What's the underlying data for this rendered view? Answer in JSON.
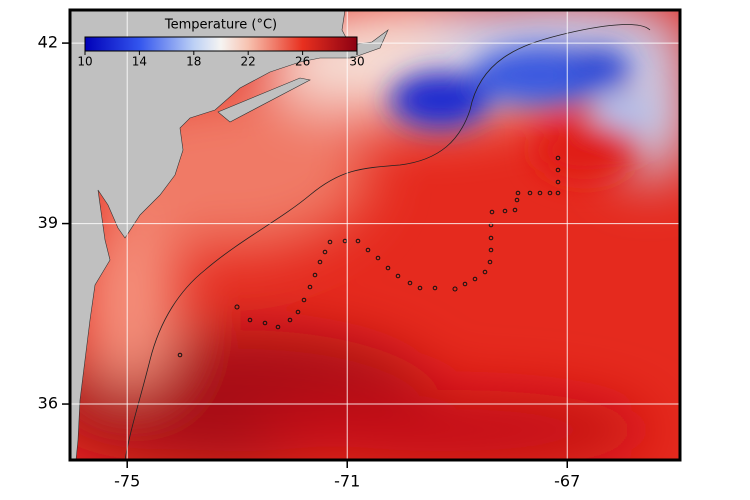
{
  "chart_data": {
    "type": "map",
    "xlim": [
      -76.04,
      -64.95
    ],
    "ylim": [
      35.07,
      42.55
    ],
    "xticks": [
      -75,
      -71,
      -67
    ],
    "yticks": [
      36,
      39,
      42
    ],
    "grid": true,
    "colorbar": {
      "title": "Temperature (°C)",
      "clim": [
        10,
        30
      ],
      "ticks": [
        10,
        14,
        18,
        22,
        26,
        30
      ]
    }
  }
}
